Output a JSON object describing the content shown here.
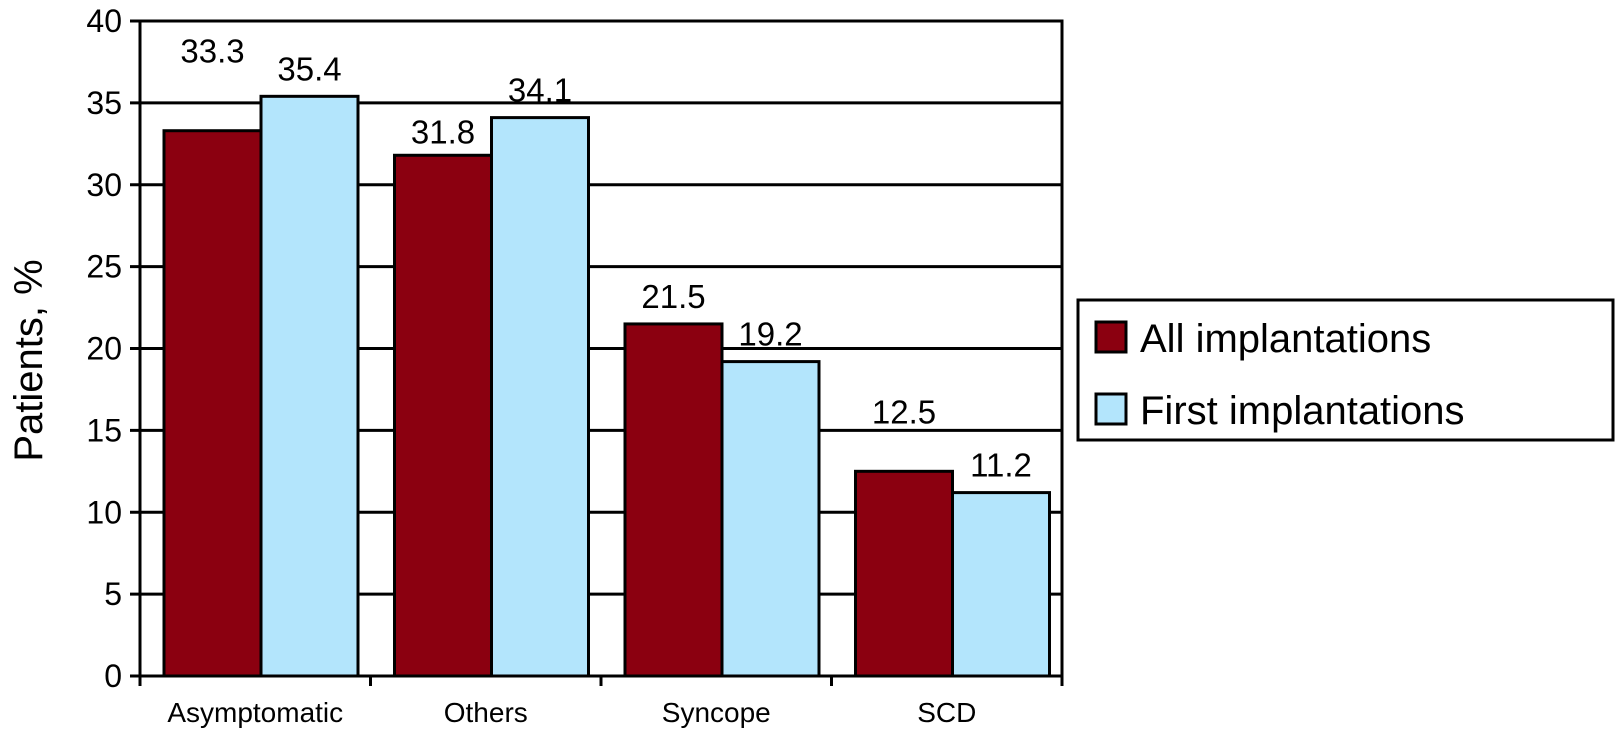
{
  "chart_data": {
    "type": "bar",
    "categories": [
      "Asymptomatic",
      "Others",
      "Syncope",
      "SCD"
    ],
    "series": [
      {
        "name": "All implantations",
        "values": [
          33.3,
          31.8,
          21.5,
          12.5
        ],
        "color": "#8B0010"
      },
      {
        "name": "First implantations",
        "values": [
          35.4,
          34.1,
          19.2,
          11.2
        ],
        "color": "#B3E5FC"
      }
    ],
    "data_labels": [
      [
        "33.3",
        "31.8",
        "21.5",
        "12.5"
      ],
      [
        "35.4",
        "34.1",
        "19.2",
        "11.2"
      ]
    ],
    "ylabel": "Patients, %",
    "xlabel": "",
    "ylim": [
      0,
      40
    ],
    "yticks": [
      0,
      5,
      10,
      15,
      20,
      25,
      30,
      35,
      40
    ],
    "grid": true,
    "legend_position": "right",
    "border_color": "#000000"
  }
}
